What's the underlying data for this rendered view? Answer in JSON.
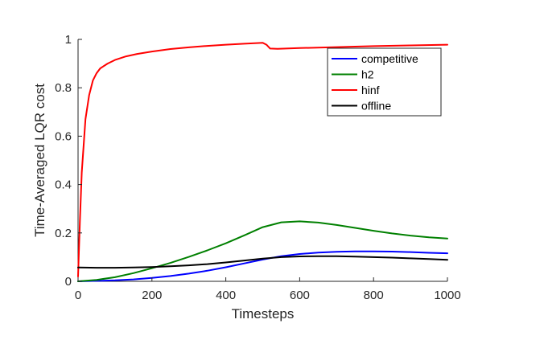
{
  "chart_data": {
    "type": "line",
    "title": "",
    "xlabel": "Timesteps",
    "ylabel": "Time-Averaged LQR cost",
    "xlim": [
      0,
      1000
    ],
    "ylim": [
      0,
      1
    ],
    "xticks": [
      0,
      200,
      400,
      600,
      800,
      1000
    ],
    "yticks": [
      0,
      0.2,
      0.4,
      0.6,
      0.8,
      1
    ],
    "xtick_labels": [
      "0",
      "200",
      "400",
      "600",
      "800",
      "1000"
    ],
    "ytick_labels": [
      "0",
      "0.2",
      "0.4",
      "0.6",
      "0.8",
      "1"
    ],
    "grid": false,
    "legend_position": "top-right",
    "series": [
      {
        "name": "competitive",
        "color": "#0000ff",
        "x": [
          0,
          50,
          100,
          150,
          200,
          250,
          300,
          350,
          400,
          450,
          500,
          550,
          600,
          650,
          700,
          750,
          800,
          850,
          900,
          950,
          1000
        ],
        "y": [
          0.0,
          0.002,
          0.004,
          0.008,
          0.014,
          0.022,
          0.032,
          0.044,
          0.058,
          0.074,
          0.09,
          0.104,
          0.113,
          0.119,
          0.122,
          0.124,
          0.124,
          0.123,
          0.121,
          0.118,
          0.116
        ]
      },
      {
        "name": "h2",
        "color": "#008000",
        "x": [
          0,
          50,
          100,
          150,
          200,
          250,
          300,
          350,
          400,
          450,
          500,
          550,
          600,
          650,
          700,
          750,
          800,
          850,
          900,
          950,
          1000
        ],
        "y": [
          0.0,
          0.006,
          0.017,
          0.034,
          0.054,
          0.076,
          0.101,
          0.128,
          0.157,
          0.19,
          0.224,
          0.244,
          0.248,
          0.243,
          0.233,
          0.221,
          0.209,
          0.198,
          0.189,
          0.182,
          0.177
        ]
      },
      {
        "name": "hinf",
        "color": "#ff0000",
        "x": [
          0,
          5,
          10,
          20,
          30,
          40,
          50,
          60,
          80,
          100,
          130,
          160,
          200,
          250,
          300,
          350,
          400,
          450,
          500,
          510,
          520,
          540,
          600,
          700,
          800,
          900,
          1000
        ],
        "y": [
          0.02,
          0.25,
          0.45,
          0.67,
          0.77,
          0.83,
          0.86,
          0.88,
          0.9,
          0.915,
          0.93,
          0.94,
          0.95,
          0.96,
          0.967,
          0.973,
          0.978,
          0.982,
          0.986,
          0.978,
          0.962,
          0.961,
          0.964,
          0.968,
          0.972,
          0.975,
          0.978
        ]
      },
      {
        "name": "offline",
        "color": "#000000",
        "x": [
          0,
          50,
          100,
          150,
          200,
          250,
          300,
          350,
          400,
          450,
          500,
          550,
          600,
          650,
          700,
          750,
          800,
          850,
          900,
          950,
          1000
        ],
        "y": [
          0.057,
          0.056,
          0.056,
          0.057,
          0.059,
          0.062,
          0.066,
          0.071,
          0.078,
          0.086,
          0.094,
          0.1,
          0.103,
          0.104,
          0.104,
          0.102,
          0.1,
          0.098,
          0.095,
          0.092,
          0.089
        ]
      }
    ]
  }
}
